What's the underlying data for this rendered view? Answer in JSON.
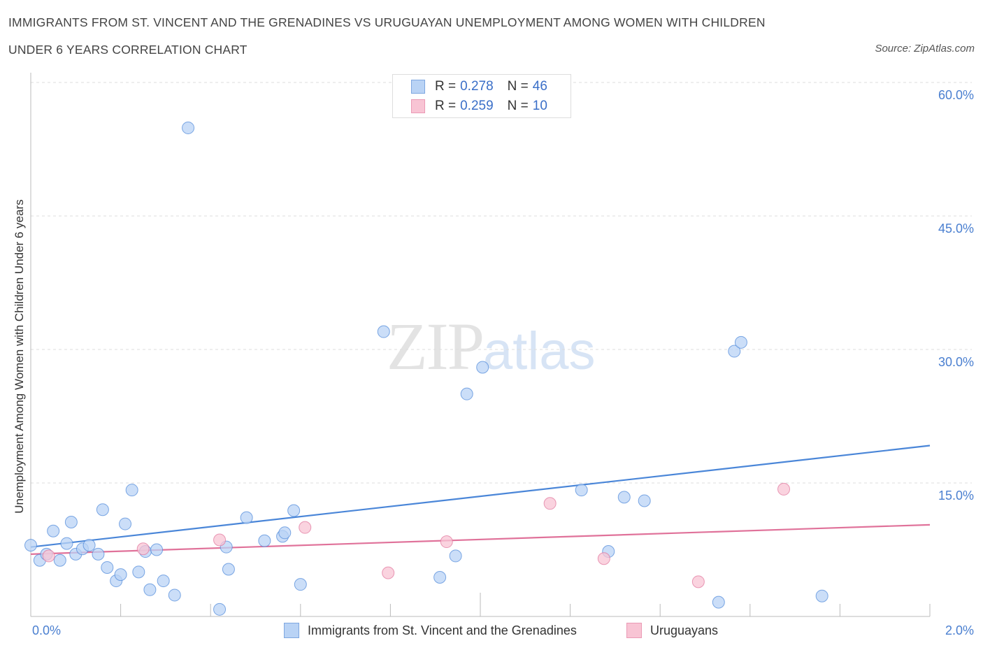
{
  "title_line1": "IMMIGRANTS FROM ST. VINCENT AND THE GRENADINES VS URUGUAYAN UNEMPLOYMENT AMONG WOMEN WITH CHILDREN",
  "title_line2": "UNDER 6 YEARS CORRELATION CHART",
  "source": "Source: ZipAtlas.com",
  "watermark_zip": "ZIP",
  "watermark_atlas": "atlas",
  "legend": [
    {
      "r_label": "R = ",
      "r_value": "0.278",
      "n_label": "N = ",
      "n_value": "46",
      "color": "#a9c8f2"
    },
    {
      "r_label": "R = ",
      "r_value": "0.259",
      "n_label": "N = ",
      "n_value": "10",
      "color": "#f7b8cb"
    }
  ],
  "bottom_legend": [
    "Immigrants from St. Vincent and the Grenadines",
    "Uruguayans"
  ],
  "chart_data": {
    "type": "scatter",
    "ylabel": "Unemployment Among Women with Children Under 6 years",
    "xlim": [
      0,
      2.0
    ],
    "ylim": [
      0,
      60
    ],
    "x_tick_labels": [
      "0.0%",
      "2.0%"
    ],
    "y_ticks": [
      15,
      30,
      45,
      60
    ],
    "y_tick_labels": [
      "15.0%",
      "30.0%",
      "45.0%",
      "60.0%"
    ],
    "grid": true,
    "series": [
      {
        "name": "Immigrants from St. Vincent and the Grenadines",
        "color": "#4a86d8",
        "fill": "#b9d3f5",
        "trend": [
          [
            0.0,
            7.8
          ],
          [
            2.0,
            19.2
          ]
        ],
        "points": [
          [
            0.0,
            8.0
          ],
          [
            0.02,
            6.3
          ],
          [
            0.035,
            7.0
          ],
          [
            0.05,
            9.6
          ],
          [
            0.065,
            6.3
          ],
          [
            0.08,
            8.2
          ],
          [
            0.09,
            10.6
          ],
          [
            0.1,
            7.0
          ],
          [
            0.115,
            7.6
          ],
          [
            0.13,
            8.0
          ],
          [
            0.15,
            7.0
          ],
          [
            0.16,
            12.0
          ],
          [
            0.17,
            5.5
          ],
          [
            0.19,
            4.0
          ],
          [
            0.2,
            4.7
          ],
          [
            0.21,
            10.4
          ],
          [
            0.225,
            14.2
          ],
          [
            0.24,
            5.0
          ],
          [
            0.255,
            7.3
          ],
          [
            0.265,
            3.0
          ],
          [
            0.28,
            7.5
          ],
          [
            0.295,
            4.0
          ],
          [
            0.32,
            2.4
          ],
          [
            0.35,
            54.9
          ],
          [
            0.42,
            0.8
          ],
          [
            0.435,
            7.8
          ],
          [
            0.44,
            5.3
          ],
          [
            0.48,
            11.1
          ],
          [
            0.52,
            8.5
          ],
          [
            0.56,
            9.0
          ],
          [
            0.565,
            9.4
          ],
          [
            0.585,
            11.9
          ],
          [
            0.6,
            3.6
          ],
          [
            0.785,
            32.0
          ],
          [
            0.91,
            4.4
          ],
          [
            0.945,
            6.8
          ],
          [
            0.97,
            25.0
          ],
          [
            1.005,
            28.0
          ],
          [
            1.225,
            14.2
          ],
          [
            1.285,
            7.3
          ],
          [
            1.32,
            13.4
          ],
          [
            1.365,
            13.0
          ],
          [
            1.53,
            1.6
          ],
          [
            1.565,
            29.8
          ],
          [
            1.58,
            30.8
          ],
          [
            1.76,
            2.3
          ]
        ]
      },
      {
        "name": "Uruguayans",
        "color": "#e0729a",
        "fill": "#f8c4d4",
        "trend": [
          [
            0.0,
            7.0
          ],
          [
            2.0,
            10.3
          ]
        ],
        "points": [
          [
            0.04,
            6.8
          ],
          [
            0.25,
            7.6
          ],
          [
            0.42,
            8.6
          ],
          [
            0.61,
            10.0
          ],
          [
            0.795,
            4.9
          ],
          [
            0.925,
            8.4
          ],
          [
            1.155,
            12.7
          ],
          [
            1.275,
            6.5
          ],
          [
            1.485,
            3.9
          ],
          [
            1.675,
            14.3
          ]
        ]
      }
    ]
  }
}
